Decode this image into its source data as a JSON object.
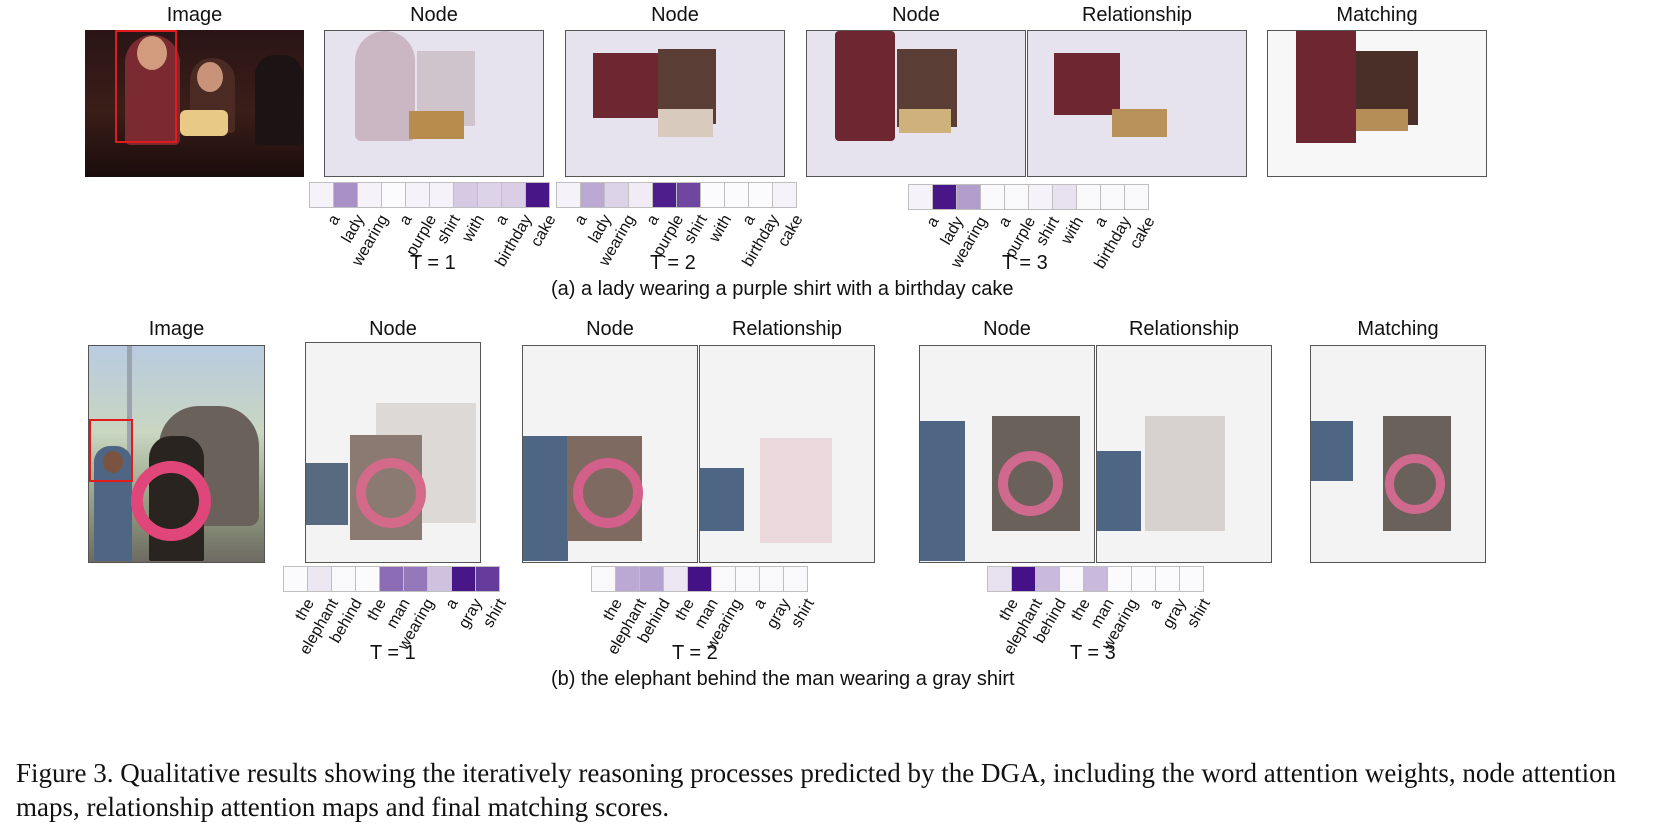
{
  "row_a": {
    "titles": [
      "Image",
      "Node",
      "Node",
      "Node",
      "Relationship",
      "Matching"
    ],
    "steps": [
      {
        "t_label": "T = 1",
        "weights": [
          0.05,
          0.45,
          0.05,
          0.02,
          0.05,
          0.05,
          0.22,
          0.18,
          0.2,
          0.95
        ]
      },
      {
        "t_label": "T = 2",
        "weights": [
          0.05,
          0.35,
          0.18,
          0.08,
          0.92,
          0.75,
          0.02,
          0.02,
          0.02,
          0.05
        ]
      },
      {
        "t_label": "T = 3",
        "weights": [
          0.05,
          0.95,
          0.4,
          0.03,
          0.03,
          0.05,
          0.12,
          0.03,
          0.03,
          0.03
        ]
      }
    ],
    "words": [
      "a",
      "lady",
      "wearing",
      "a",
      "purple",
      "shirt",
      "with",
      "a",
      "birthday",
      "cake"
    ],
    "subcaption": "(a) a lady wearing a purple shirt with a birthday cake"
  },
  "row_b": {
    "titles": [
      "Image",
      "Node",
      "Node",
      "Relationship",
      "Node",
      "Relationship",
      "Matching"
    ],
    "steps": [
      {
        "t_label": "T = 1",
        "weights": [
          0.02,
          0.1,
          0.03,
          0.02,
          0.6,
          0.55,
          0.25,
          0.95,
          0.8
        ]
      },
      {
        "t_label": "T = 2",
        "weights": [
          0.03,
          0.35,
          0.38,
          0.1,
          0.97,
          0.03,
          0.03,
          0.03,
          0.03
        ]
      },
      {
        "t_label": "T = 3",
        "weights": [
          0.12,
          0.97,
          0.28,
          0.03,
          0.28,
          0.02,
          0.02,
          0.02,
          0.02
        ]
      }
    ],
    "words": [
      "the",
      "elephant",
      "behind",
      "the",
      "man",
      "wearing",
      "a",
      "gray",
      "shirt"
    ],
    "subcaption": "(b) the elephant behind the man wearing a gray shirt"
  },
  "caption": "Figure 3. Qualitative results showing the iteratively reasoning processes predicted by the DGA, including the word attention weights, node attention maps, relationship attention maps and final matching scores.",
  "colors": {
    "attention_high": "#3f0a82",
    "attention_low": "#ffffff",
    "box": "#e01b1b"
  }
}
